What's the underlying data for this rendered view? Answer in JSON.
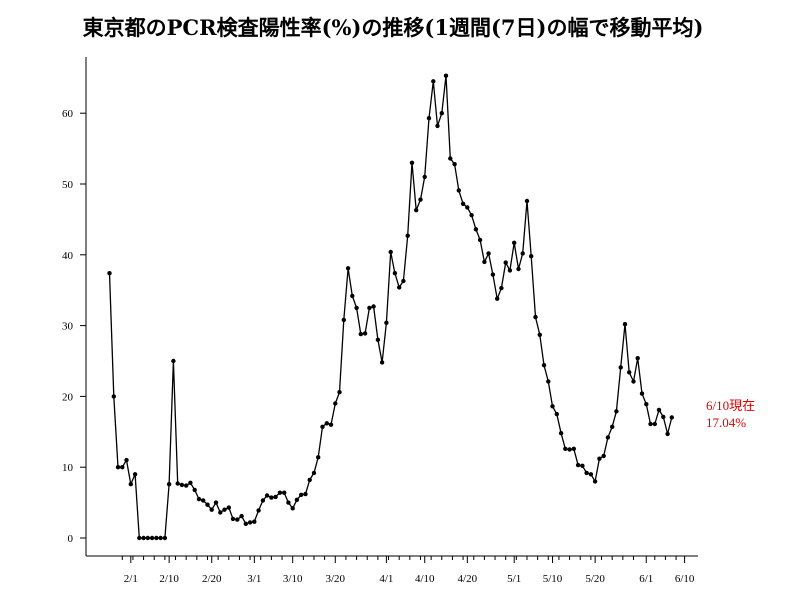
{
  "chart_data": {
    "type": "line",
    "title": "東京都のPCR検査陽性率(%)の推移(1週間(7日)の幅で移動平均)",
    "xlabel": "",
    "ylabel": "",
    "ylim": [
      0,
      65.5
    ],
    "y_ticks": [
      "0",
      "10",
      "20",
      "30",
      "40",
      "50",
      "60"
    ],
    "x_tick_labels": [
      "2/1",
      "2/10",
      "2/20",
      "3/1",
      "3/10",
      "3/20",
      "4/1",
      "4/10",
      "4/20",
      "5/1",
      "5/10",
      "5/20",
      "6/1",
      "6/10"
    ],
    "x_tick_days": [
      32,
      41,
      51,
      61,
      70,
      80,
      92,
      101,
      111,
      122,
      131,
      141,
      153,
      162
    ],
    "grid": false,
    "series": [
      {
        "color": "#000000",
        "marker": "dot",
        "points": [
          [
            27,
            37.4
          ],
          [
            28,
            20.0
          ],
          [
            29,
            10.0
          ],
          [
            30,
            10.0
          ],
          [
            31,
            11.0
          ],
          [
            32,
            7.6
          ],
          [
            33,
            9.0
          ],
          [
            34,
            0.0
          ],
          [
            35,
            0.0
          ],
          [
            36,
            0.0
          ],
          [
            37,
            0.0
          ],
          [
            38,
            0.0
          ],
          [
            39,
            0.0
          ],
          [
            40,
            0.0
          ],
          [
            41,
            7.6
          ],
          [
            42,
            25.0
          ],
          [
            43,
            7.7
          ],
          [
            44,
            7.5
          ],
          [
            45,
            7.4
          ],
          [
            46,
            7.8
          ],
          [
            47,
            6.8
          ],
          [
            48,
            5.5
          ],
          [
            49,
            5.3
          ],
          [
            50,
            4.7
          ],
          [
            51,
            4.0
          ],
          [
            52,
            5.0
          ],
          [
            53,
            3.6
          ],
          [
            54,
            4.0
          ],
          [
            55,
            4.3
          ],
          [
            56,
            2.7
          ],
          [
            57,
            2.6
          ],
          [
            58,
            3.1
          ],
          [
            59,
            2.0
          ],
          [
            60,
            2.2
          ],
          [
            61,
            2.3
          ],
          [
            62,
            3.9
          ],
          [
            63,
            5.3
          ],
          [
            64,
            6.0
          ],
          [
            65,
            5.7
          ],
          [
            66,
            5.8
          ],
          [
            67,
            6.4
          ],
          [
            68,
            6.4
          ],
          [
            69,
            5.0
          ],
          [
            70,
            4.2
          ],
          [
            71,
            5.4
          ],
          [
            72,
            6.1
          ],
          [
            73,
            6.2
          ],
          [
            74,
            8.2
          ],
          [
            75,
            9.2
          ],
          [
            76,
            11.4
          ],
          [
            77,
            15.7
          ],
          [
            78,
            16.2
          ],
          [
            79,
            16.0
          ],
          [
            80,
            19.0
          ],
          [
            81,
            20.6
          ],
          [
            82,
            30.8
          ],
          [
            83,
            38.1
          ],
          [
            84,
            34.2
          ],
          [
            85,
            32.5
          ],
          [
            86,
            28.8
          ],
          [
            87,
            28.9
          ],
          [
            88,
            32.5
          ],
          [
            89,
            32.7
          ],
          [
            90,
            28.0
          ],
          [
            91,
            24.8
          ],
          [
            92,
            30.4
          ],
          [
            93,
            40.4
          ],
          [
            94,
            37.4
          ],
          [
            95,
            35.4
          ],
          [
            96,
            36.3
          ],
          [
            97,
            42.7
          ],
          [
            98,
            53.0
          ],
          [
            99,
            46.3
          ],
          [
            100,
            47.8
          ],
          [
            101,
            51.0
          ],
          [
            102,
            59.3
          ],
          [
            103,
            64.5
          ],
          [
            104,
            58.2
          ],
          [
            105,
            60.0
          ],
          [
            106,
            65.3
          ],
          [
            107,
            53.6
          ],
          [
            108,
            52.8
          ],
          [
            109,
            49.1
          ],
          [
            110,
            47.2
          ],
          [
            111,
            46.7
          ],
          [
            112,
            45.6
          ],
          [
            113,
            43.6
          ],
          [
            114,
            42.1
          ],
          [
            115,
            39.0
          ],
          [
            116,
            40.2
          ],
          [
            117,
            37.2
          ],
          [
            118,
            33.8
          ],
          [
            119,
            35.3
          ],
          [
            120,
            38.9
          ],
          [
            121,
            37.8
          ],
          [
            122,
            41.7
          ],
          [
            123,
            38.0
          ],
          [
            124,
            40.2
          ],
          [
            125,
            47.6
          ],
          [
            126,
            39.8
          ],
          [
            127,
            31.2
          ],
          [
            128,
            28.7
          ],
          [
            129,
            24.4
          ],
          [
            130,
            22.1
          ],
          [
            131,
            18.6
          ],
          [
            132,
            17.5
          ],
          [
            133,
            14.8
          ],
          [
            134,
            12.6
          ],
          [
            135,
            12.5
          ],
          [
            136,
            12.6
          ],
          [
            137,
            10.3
          ],
          [
            138,
            10.2
          ],
          [
            139,
            9.2
          ],
          [
            140,
            9.0
          ],
          [
            141,
            8.0
          ],
          [
            142,
            11.2
          ],
          [
            143,
            11.6
          ],
          [
            144,
            14.2
          ],
          [
            145,
            15.7
          ],
          [
            146,
            17.9
          ],
          [
            147,
            24.1
          ],
          [
            148,
            30.2
          ],
          [
            149,
            23.4
          ],
          [
            150,
            22.1
          ],
          [
            151,
            25.4
          ],
          [
            152,
            20.4
          ],
          [
            153,
            18.9
          ],
          [
            154,
            16.1
          ],
          [
            155,
            16.1
          ],
          [
            156,
            18.1
          ],
          [
            157,
            17.1
          ],
          [
            158,
            14.7
          ],
          [
            159,
            17.04
          ]
        ]
      }
    ],
    "annotation": {
      "lines": [
        "6/10現在",
        "17.04%"
      ],
      "color": "#e00000"
    }
  }
}
